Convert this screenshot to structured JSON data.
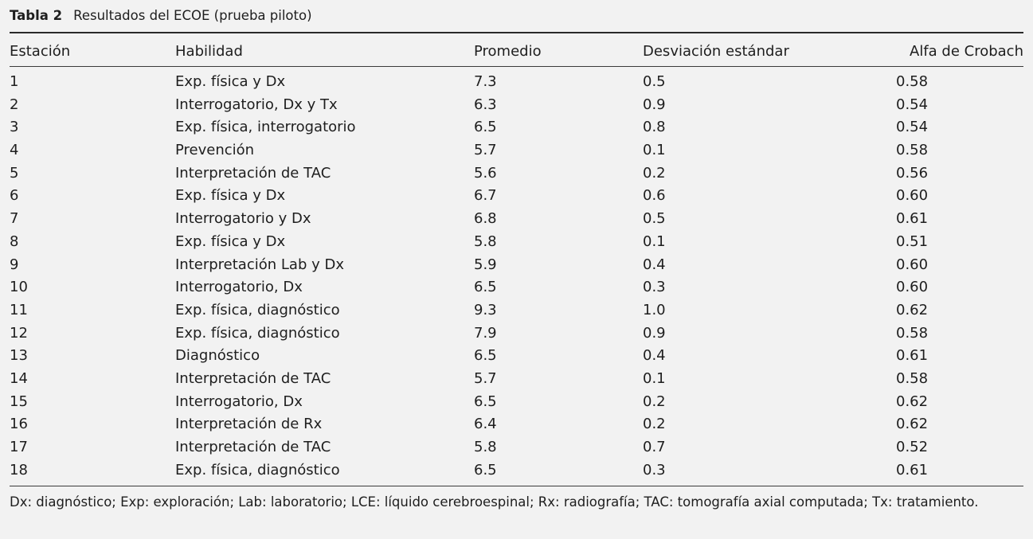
{
  "caption": {
    "label": "Tabla 2",
    "title": "Resultados del ECOE (prueba piloto)"
  },
  "columns": [
    "Estación",
    "Habilidad",
    "Promedio",
    "Desviación estándar",
    "Alfa de Crobach"
  ],
  "rows": [
    [
      "1",
      "Exp. física y Dx",
      "7.3",
      "0.5",
      "0.58"
    ],
    [
      "2",
      "Interrogatorio, Dx y Tx",
      "6.3",
      "0.9",
      "0.54"
    ],
    [
      "3",
      "Exp. física, interrogatorio",
      "6.5",
      "0.8",
      "0.54"
    ],
    [
      "4",
      "Prevención",
      "5.7",
      "0.1",
      "0.58"
    ],
    [
      "5",
      "Interpretación de TAC",
      "5.6",
      "0.2",
      "0.56"
    ],
    [
      "6",
      "Exp. física y Dx",
      "6.7",
      "0.6",
      "0.60"
    ],
    [
      "7",
      "Interrogatorio y Dx",
      "6.8",
      "0.5",
      "0.61"
    ],
    [
      "8",
      "Exp. física y Dx",
      "5.8",
      "0.1",
      "0.51"
    ],
    [
      "9",
      "Interpretación Lab y Dx",
      "5.9",
      "0.4",
      "0.60"
    ],
    [
      "10",
      "Interrogatorio, Dx",
      "6.5",
      "0.3",
      "0.60"
    ],
    [
      "11",
      "Exp. física, diagnóstico",
      "9.3",
      "1.0",
      "0.62"
    ],
    [
      "12",
      "Exp. física, diagnóstico",
      "7.9",
      "0.9",
      "0.58"
    ],
    [
      "13",
      "Diagnóstico",
      "6.5",
      "0.4",
      "0.61"
    ],
    [
      "14",
      "Interpretación de TAC",
      "5.7",
      "0.1",
      "0.58"
    ],
    [
      "15",
      "Interrogatorio, Dx",
      "6.5",
      "0.2",
      "0.62"
    ],
    [
      "16",
      "Interpretación de Rx",
      "6.4",
      "0.2",
      "0.62"
    ],
    [
      "17",
      "Interpretación de TAC",
      "5.8",
      "0.7",
      "0.52"
    ],
    [
      "18",
      "Exp. física, diagnóstico",
      "6.5",
      "0.3",
      "0.61"
    ]
  ],
  "footnote": "Dx: diagnóstico; Exp: exploración; Lab: laboratorio; LCE: líquido cerebroespinal; Rx: radiografía; TAC: tomografía axial computada; Tx: tratamiento."
}
